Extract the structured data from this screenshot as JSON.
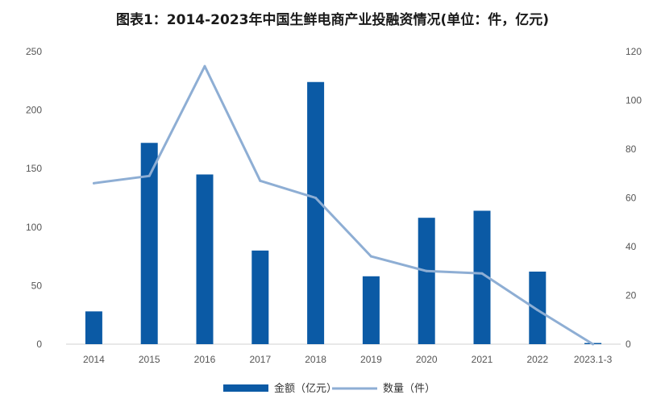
{
  "chart_data": {
    "type": "bar",
    "title": "图表1：2014-2023年中国生鲜电商产业投融资情况(单位：件，亿元)",
    "categories": [
      "2014",
      "2015",
      "2016",
      "2017",
      "2018",
      "2019",
      "2020",
      "2021",
      "2022",
      "2023.1-3"
    ],
    "series": [
      {
        "name": "金额（亿元）",
        "type": "bar",
        "axis": "left",
        "color": "#0b5aa5",
        "values": [
          28,
          172,
          145,
          80,
          224,
          58,
          108,
          114,
          62,
          1
        ]
      },
      {
        "name": "数量（件）",
        "type": "line",
        "axis": "right",
        "color": "#8eaed4",
        "values": [
          66,
          69,
          114,
          67,
          60,
          36,
          30,
          29,
          14,
          0
        ]
      }
    ],
    "ylim_left": [
      0,
      250
    ],
    "yticks_left": [
      "0",
      "50",
      "100",
      "150",
      "200",
      "250"
    ],
    "ylim_right": [
      0,
      120
    ],
    "yticks_right": [
      "0",
      "20",
      "40",
      "60",
      "80",
      "100",
      "120"
    ],
    "grid": false,
    "legend": "bottom-center"
  }
}
